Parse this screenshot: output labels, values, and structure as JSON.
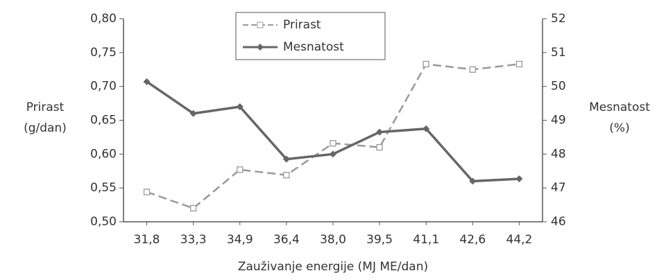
{
  "chart_data": {
    "type": "line",
    "x_label": "Zauživanje energije (MJ ME/dan)",
    "y_label": [
      "Prirast",
      "(g/dan)"
    ],
    "y2_label": [
      "Mesnatost",
      "(%)"
    ],
    "categories": [
      "31,8",
      "33,3",
      "34,9",
      "36,4",
      "38,0",
      "39,5",
      "41,1",
      "42,6",
      "44,2"
    ],
    "series": [
      {
        "name": "Prirast",
        "color": "#999999",
        "dash": true,
        "marker": "square",
        "values": [
          0.544,
          0.52,
          0.577,
          0.569,
          0.616,
          0.61,
          0.733,
          0.725,
          0.733
        ]
      },
      {
        "name": "Mesnatost",
        "color": "#666666",
        "dash": false,
        "marker": "diamond",
        "axis": "y2",
        "values": [
          50.14,
          49.2,
          49.4,
          47.85,
          48.0,
          48.65,
          48.75,
          47.2,
          47.27
        ]
      }
    ],
    "ylim": [
      0.5,
      0.8
    ],
    "yticks": [
      {
        "value": 0.5,
        "label": "0,50"
      },
      {
        "value": 0.55,
        "label": "0,55"
      },
      {
        "value": 0.6,
        "label": "0,60"
      },
      {
        "value": 0.65,
        "label": "0,65"
      },
      {
        "value": 0.7,
        "label": "0,70"
      },
      {
        "value": 0.75,
        "label": "0,75"
      },
      {
        "value": 0.8,
        "label": "0,80"
      }
    ],
    "y2lim": [
      46,
      52
    ],
    "y2ticks": [
      46,
      47,
      48,
      49,
      50,
      51,
      52
    ],
    "legend": "top"
  }
}
